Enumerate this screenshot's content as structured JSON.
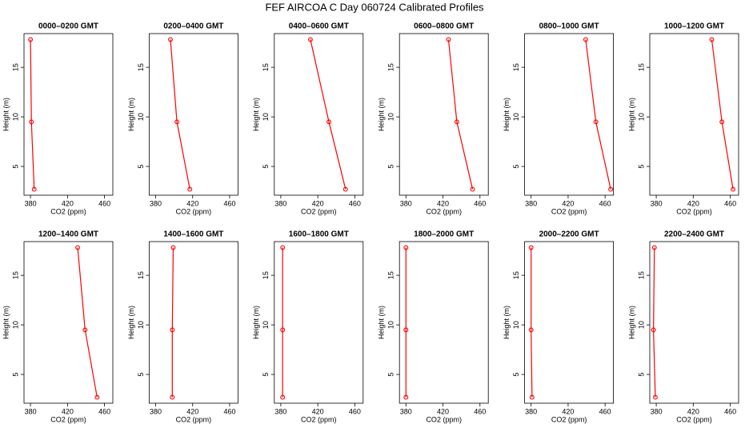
{
  "title": "FEF AIRCOA C  Day 060724  Calibrated Profiles",
  "chart_data": [
    {
      "type": "line",
      "title": "0000–0200 GMT",
      "xlabel": "CO2 (ppm)",
      "ylabel": "Height (m)",
      "x": [
        384,
        381,
        380
      ],
      "y": [
        2.7,
        9.5,
        17.8
      ],
      "color": "#ff0000",
      "xlim": [
        373,
        469
      ],
      "ylim": [
        2.1,
        18.4
      ],
      "xticks": [
        380,
        420,
        460
      ],
      "yticks": [
        5,
        10,
        15
      ]
    },
    {
      "type": "line",
      "title": "0200–0400 GMT",
      "xlabel": "CO2 (ppm)",
      "ylabel": "Height (m)",
      "x": [
        417,
        403,
        396
      ],
      "y": [
        2.7,
        9.5,
        17.8
      ],
      "color": "#ff0000",
      "xlim": [
        373,
        469
      ],
      "ylim": [
        2.1,
        18.4
      ],
      "xticks": [
        380,
        420,
        460
      ],
      "yticks": [
        5,
        10,
        15
      ]
    },
    {
      "type": "line",
      "title": "0400–0600 GMT",
      "xlabel": "CO2 (ppm)",
      "ylabel": "Height (m)",
      "x": [
        450,
        432,
        412
      ],
      "y": [
        2.7,
        9.5,
        17.8
      ],
      "color": "#ff0000",
      "xlim": [
        373,
        469
      ],
      "ylim": [
        2.1,
        18.4
      ],
      "xticks": [
        380,
        420,
        460
      ],
      "yticks": [
        5,
        10,
        15
      ]
    },
    {
      "type": "line",
      "title": "0600–0800 GMT",
      "xlabel": "CO2 (ppm)",
      "ylabel": "Height (m)",
      "x": [
        452,
        435,
        426
      ],
      "y": [
        2.7,
        9.5,
        17.8
      ],
      "color": "#ff0000",
      "xlim": [
        373,
        469
      ],
      "ylim": [
        2.1,
        18.4
      ],
      "xticks": [
        380,
        420,
        460
      ],
      "yticks": [
        5,
        10,
        15
      ]
    },
    {
      "type": "line",
      "title": "0800–1000 GMT",
      "xlabel": "CO2 (ppm)",
      "ylabel": "Height (m)",
      "x": [
        466,
        450,
        439
      ],
      "y": [
        2.7,
        9.5,
        17.8
      ],
      "color": "#ff0000",
      "xlim": [
        373,
        469
      ],
      "ylim": [
        2.1,
        18.4
      ],
      "xticks": [
        380,
        420,
        460
      ],
      "yticks": [
        5,
        10,
        15
      ]
    },
    {
      "type": "line",
      "title": "1000–1200 GMT",
      "xlabel": "CO2 (ppm)",
      "ylabel": "Height (m)",
      "x": [
        463,
        451,
        440
      ],
      "y": [
        2.7,
        9.5,
        17.8
      ],
      "color": "#ff0000",
      "xlim": [
        373,
        469
      ],
      "ylim": [
        2.1,
        18.4
      ],
      "xticks": [
        380,
        420,
        460
      ],
      "yticks": [
        5,
        10,
        15
      ]
    },
    {
      "type": "line",
      "title": "1200–1400 GMT",
      "xlabel": "CO2 (ppm)",
      "ylabel": "Height (m)",
      "x": [
        452,
        439,
        431
      ],
      "y": [
        2.7,
        9.5,
        17.8
      ],
      "color": "#ff0000",
      "xlim": [
        373,
        469
      ],
      "ylim": [
        2.1,
        18.4
      ],
      "xticks": [
        380,
        420,
        460
      ],
      "yticks": [
        5,
        10,
        15
      ]
    },
    {
      "type": "line",
      "title": "1400–1600 GMT",
      "xlabel": "CO2 (ppm)",
      "ylabel": "Height (m)",
      "x": [
        398,
        398,
        399
      ],
      "y": [
        2.7,
        9.5,
        17.8
      ],
      "color": "#ff0000",
      "xlim": [
        373,
        469
      ],
      "ylim": [
        2.1,
        18.4
      ],
      "xticks": [
        380,
        420,
        460
      ],
      "yticks": [
        5,
        10,
        15
      ]
    },
    {
      "type": "line",
      "title": "1600–1800 GMT",
      "xlabel": "CO2 (ppm)",
      "ylabel": "Height (m)",
      "x": [
        382,
        382,
        382
      ],
      "y": [
        2.7,
        9.5,
        17.8
      ],
      "color": "#ff0000",
      "xlim": [
        373,
        469
      ],
      "ylim": [
        2.1,
        18.4
      ],
      "xticks": [
        380,
        420,
        460
      ],
      "yticks": [
        5,
        10,
        15
      ]
    },
    {
      "type": "line",
      "title": "1800–2000 GMT",
      "xlabel": "CO2 (ppm)",
      "ylabel": "Height (m)",
      "x": [
        380,
        380,
        380
      ],
      "y": [
        2.7,
        9.5,
        17.8
      ],
      "color": "#ff0000",
      "xlim": [
        373,
        469
      ],
      "ylim": [
        2.1,
        18.4
      ],
      "xticks": [
        380,
        420,
        460
      ],
      "yticks": [
        5,
        10,
        15
      ]
    },
    {
      "type": "line",
      "title": "2000–2200 GMT",
      "xlabel": "CO2 (ppm)",
      "ylabel": "Height (m)",
      "x": [
        381,
        380,
        380
      ],
      "y": [
        2.7,
        9.5,
        17.8
      ],
      "color": "#ff0000",
      "xlim": [
        373,
        469
      ],
      "ylim": [
        2.1,
        18.4
      ],
      "xticks": [
        380,
        420,
        460
      ],
      "yticks": [
        5,
        10,
        15
      ]
    },
    {
      "type": "line",
      "title": "2200–2400 GMT",
      "xlabel": "CO2 (ppm)",
      "ylabel": "Height (m)",
      "x": [
        379,
        377,
        378
      ],
      "y": [
        2.7,
        9.5,
        17.8
      ],
      "color": "#ff0000",
      "xlim": [
        373,
        469
      ],
      "ylim": [
        2.1,
        18.4
      ],
      "xticks": [
        380,
        420,
        460
      ],
      "yticks": [
        5,
        10,
        15
      ]
    }
  ]
}
